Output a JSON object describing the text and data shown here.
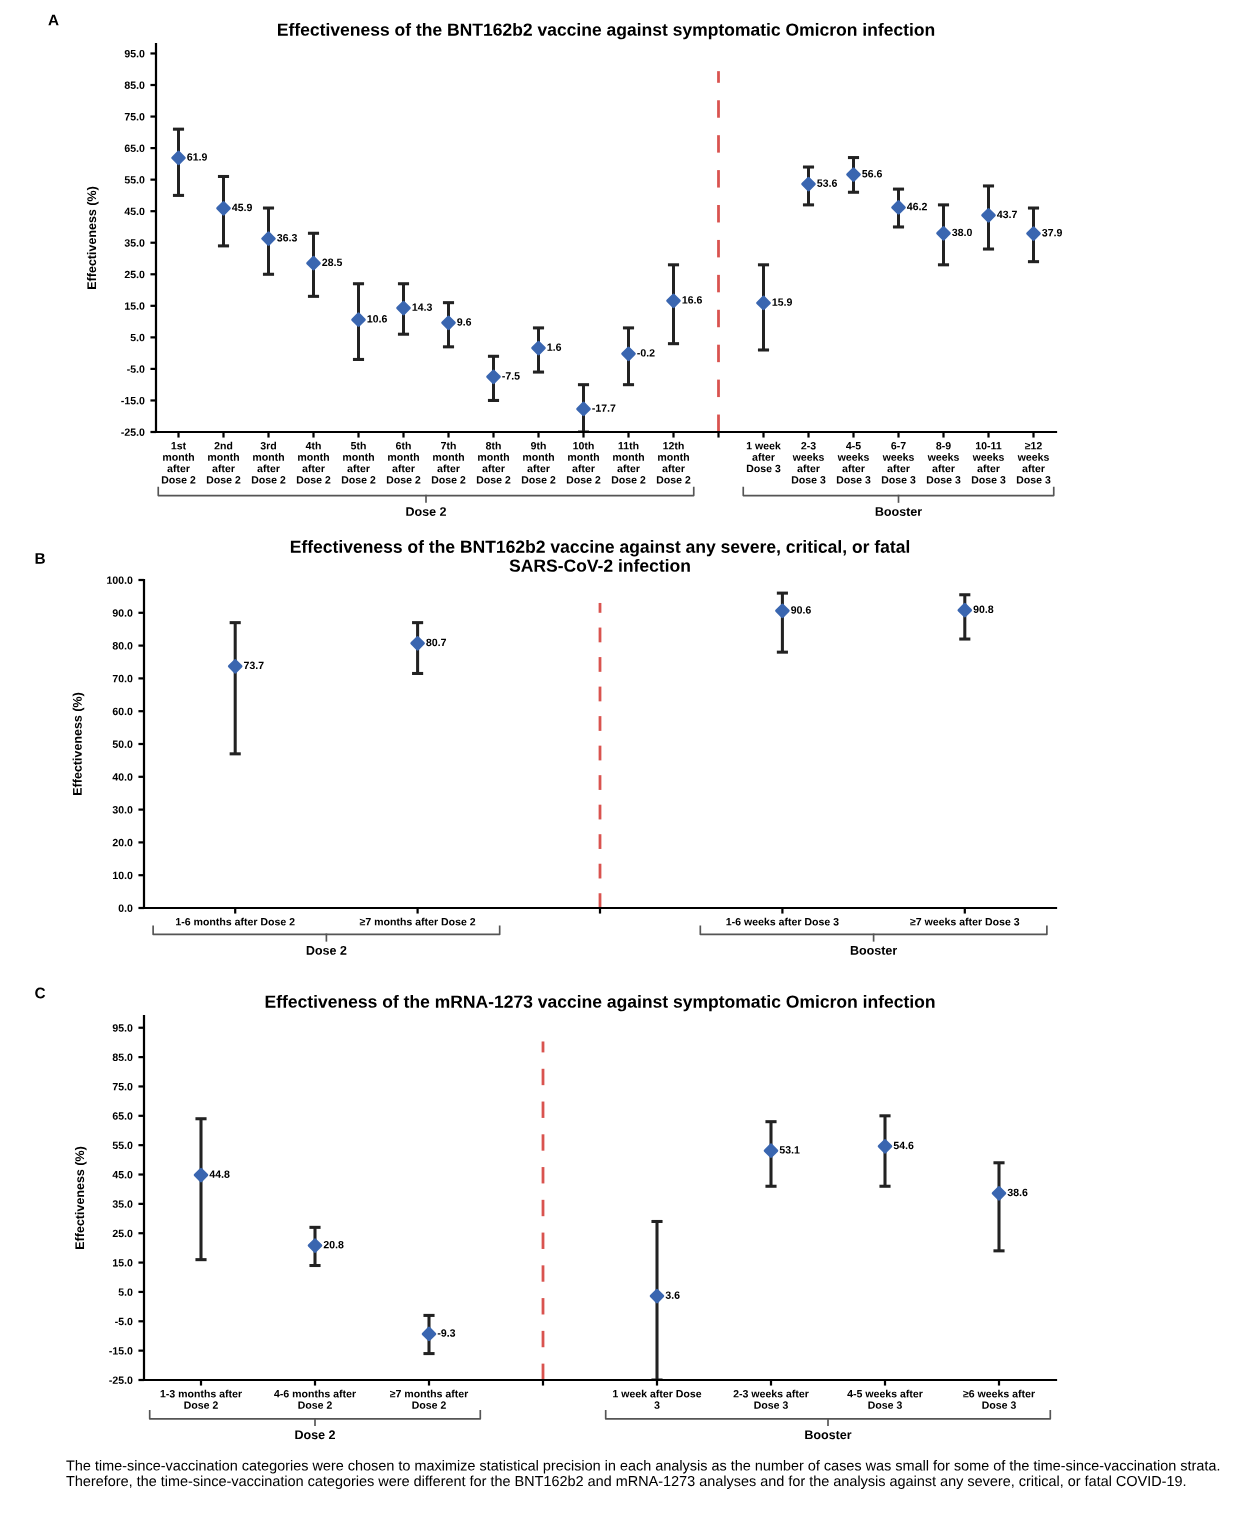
{
  "chart_data": [
    {
      "type": "scatter",
      "title": "Effectiveness of the BNT162b2 vaccine against symptomatic Omicron infection",
      "ylabel": "Effectiveness (%)",
      "annotations": [
        "A",
        "Dose 2",
        "Booster"
      ],
      "categories": [
        "1st\nmonth\nafter\nDose 2",
        "2nd\nmonth\nafter\nDose 2",
        "3rd\nmonth\nafter\nDose 2",
        "4th\nmonth\nafter\nDose 2",
        "5th\nmonth\nafter\nDose 2",
        "6th\nmonth\nafter\nDose 2",
        "7th\nmonth\nafter\nDose 2",
        "8th\nmonth\nafter\nDose 2",
        "9th\nmonth\nafter\nDose 2",
        "10th\nmonth\nafter\nDose 2",
        "11th\nmonth\nafter\nDose 2",
        "12th\nmonth\nafter\nDose 2",
        null,
        "1 week\nafter\nDose 3",
        "2-3\nweeks\nafter\nDose 3",
        "4-5\nweeks\nafter\nDose 3",
        "6-7\nweeks\nafter\nDose 3",
        "8-9\nweeks\nafter\nDose 3",
        "10-11\nweeks\nafter\nDose 3",
        "≥12\nweeks\nafter\nDose 3"
      ],
      "series": [
        {
          "color": "#3a66b0",
          "values": [
            61.9,
            45.9,
            36.3,
            28.5,
            10.6,
            14.3,
            9.6,
            -7.5,
            1.6,
            -17.7,
            -0.2,
            16.6,
            null,
            15.9,
            53.6,
            56.6,
            46.2,
            38.0,
            43.7,
            37.9
          ],
          "value_labels": [
            "61.9",
            "45.9",
            "36.3",
            "28.5",
            "10.6",
            "14.3",
            "9.6",
            "-7.5",
            "1.6",
            "-17.7",
            "-0.2",
            "16.6",
            null,
            "15.9",
            "53.6",
            "56.6",
            "46.2",
            "38.0",
            "43.7",
            "37.9"
          ],
          "errors": [
            [
              50,
              71
            ],
            [
              34,
              56
            ],
            [
              25,
              46
            ],
            [
              18,
              38
            ],
            [
              -2,
              22
            ],
            [
              6,
              22
            ],
            [
              2,
              16
            ],
            [
              -15,
              -1
            ],
            [
              -6,
              8
            ],
            [
              -25,
              -10
            ],
            [
              -10,
              8
            ],
            [
              3,
              28
            ],
            null,
            [
              1,
              28
            ],
            [
              47,
              59
            ],
            [
              51,
              62
            ],
            [
              40,
              52
            ],
            [
              28,
              47
            ],
            [
              33,
              53
            ],
            [
              29,
              46
            ]
          ]
        }
      ],
      "marker": "diamond",
      "ylim": [
        -25,
        98
      ],
      "yticks": [
        {
          "value": -25,
          "label": "-25.0"
        },
        {
          "value": -15,
          "label": "-15.0"
        },
        {
          "value": -5,
          "label": "-5.0"
        },
        {
          "value": 5,
          "label": "5.0"
        },
        {
          "value": 15,
          "label": "15.0"
        },
        {
          "value": 25,
          "label": "25.0"
        },
        {
          "value": 35,
          "label": "35.0"
        },
        {
          "value": 45,
          "label": "45.0"
        },
        {
          "value": 55,
          "label": "55.0"
        },
        {
          "value": 65,
          "label": "65.0"
        },
        {
          "value": 75,
          "label": "75.0"
        },
        {
          "value": 85,
          "label": "85.0"
        },
        {
          "value": 95,
          "label": "95.0"
        }
      ],
      "grid": false,
      "legend": false
    },
    {
      "type": "scatter",
      "title": "Effectiveness of the BNT162b2 vaccine against any severe, critical, or fatal\nSARS-CoV-2 infection",
      "ylabel": "Effectiveness (%)",
      "annotations": [
        "B",
        "Dose 2",
        "Booster"
      ],
      "categories": [
        "1-6 months after Dose 2",
        "≥7 months after Dose 2",
        null,
        "1-6 weeks after Dose 3",
        "≥7 weeks after Dose 3"
      ],
      "series": [
        {
          "color": "#3a66b0",
          "values": [
            73.7,
            80.7,
            null,
            90.6,
            90.8
          ],
          "value_labels": [
            "73.7",
            "80.7",
            null,
            "90.6",
            "90.8"
          ],
          "errors": [
            [
              47,
              87
            ],
            [
              71.5,
              87
            ],
            null,
            [
              78,
              96
            ],
            [
              82,
              95.5
            ]
          ]
        }
      ],
      "marker": "diamond",
      "ylim": [
        0,
        100
      ],
      "yticks": [
        {
          "value": 0,
          "label": "0.0"
        },
        {
          "value": 10,
          "label": "10.0"
        },
        {
          "value": 20,
          "label": "20.0"
        },
        {
          "value": 30,
          "label": "30.0"
        },
        {
          "value": 40,
          "label": "40.0"
        },
        {
          "value": 50,
          "label": "50.0"
        },
        {
          "value": 60,
          "label": "60.0"
        },
        {
          "value": 70,
          "label": "70.0"
        },
        {
          "value": 80,
          "label": "80.0"
        },
        {
          "value": 90,
          "label": "90.0"
        },
        {
          "value": 100,
          "label": "100.0"
        }
      ],
      "grid": false,
      "legend": false
    },
    {
      "type": "scatter",
      "title": "Effectiveness of the mRNA-1273 vaccine against symptomatic Omicron infection",
      "ylabel": "Effectiveness (%)",
      "annotations": [
        "C",
        "Dose 2",
        "Booster",
        "The time-since-vaccination categories were chosen to maximize statistical precision in each analysis as the number of cases was small for some of the time-since-vaccination strata. Therefore, the time-since-vaccination categories were different for the BNT162b2 and mRNA-1273 analyses and for the analysis against any severe, critical, or fatal COVID-19."
      ],
      "categories": [
        "1-3 months after\nDose 2",
        "4-6 months after\nDose 2",
        "≥7 months after\nDose 2",
        null,
        "1 week after Dose\n3",
        "2-3 weeks after\nDose 3",
        "4-5 weeks after\nDose 3",
        "≥6 weeks after\nDose 3"
      ],
      "series": [
        {
          "color": "#3a66b0",
          "values": [
            44.8,
            20.8,
            -9.3,
            null,
            3.6,
            53.1,
            54.6,
            38.6
          ],
          "value_labels": [
            "44.8",
            "20.8",
            "-9.3",
            null,
            "3.6",
            "53.1",
            "54.6",
            "38.6"
          ],
          "errors": [
            [
              16,
              64
            ],
            [
              14,
              27
            ],
            [
              -16,
              -3
            ],
            null,
            [
              -25,
              29
            ],
            [
              41,
              63
            ],
            [
              41,
              65
            ],
            [
              19,
              49
            ]
          ]
        }
      ],
      "marker": "diamond",
      "ylim": [
        -25,
        99
      ],
      "yticks": [
        {
          "value": -25,
          "label": "-25.0"
        },
        {
          "value": -15,
          "label": "-15.0"
        },
        {
          "value": -5,
          "label": "-5.0"
        },
        {
          "value": 5,
          "label": "5.0"
        },
        {
          "value": 15,
          "label": "15.0"
        },
        {
          "value": 25,
          "label": "25.0"
        },
        {
          "value": 35,
          "label": "35.0"
        },
        {
          "value": 45,
          "label": "45.0"
        },
        {
          "value": 55,
          "label": "55.0"
        },
        {
          "value": 65,
          "label": "65.0"
        },
        {
          "value": 75,
          "label": "75.0"
        },
        {
          "value": 85,
          "label": "85.0"
        },
        {
          "value": 95,
          "label": "95.0"
        }
      ],
      "grid": false,
      "legend": false
    }
  ]
}
